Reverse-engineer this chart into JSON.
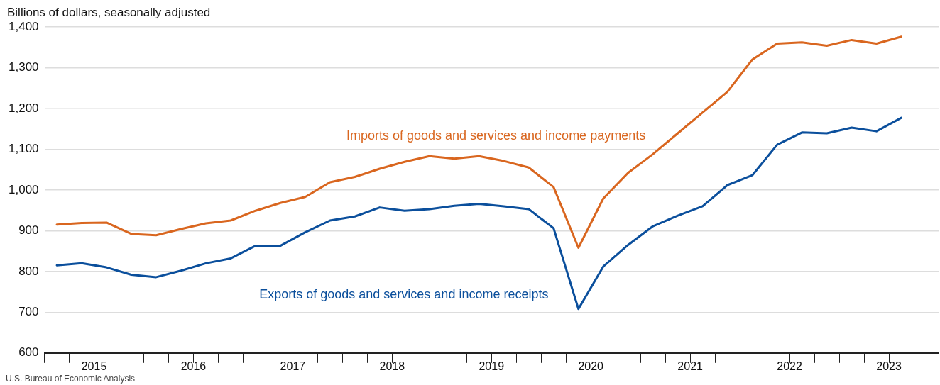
{
  "chart_data": {
    "type": "line",
    "ylabel": "Billions of dollars, seasonally adjusted",
    "annotations": [
      "U.S. Bureau of Economic Analysis"
    ],
    "x": [
      2015.125,
      2015.375,
      2015.625,
      2015.875,
      2016.125,
      2016.375,
      2016.625,
      2016.875,
      2017.125,
      2017.375,
      2017.625,
      2017.875,
      2018.125,
      2018.375,
      2018.625,
      2018.875,
      2019.125,
      2019.375,
      2019.625,
      2019.875,
      2020.125,
      2020.375,
      2020.625,
      2020.875,
      2021.125,
      2021.375,
      2021.625,
      2021.875,
      2022.125,
      2022.375,
      2022.625,
      2022.875,
      2023.125,
      2023.375,
      2023.625
    ],
    "series": [
      {
        "name": "Imports of goods and services and income payments",
        "color": "#d9661f",
        "values": [
          915,
          919,
          920,
          892,
          889,
          904,
          918,
          925,
          949,
          968,
          983,
          1019,
          1032,
          1052,
          1069,
          1083,
          1077,
          1083,
          1071,
          1055,
          1007,
          858,
          979,
          1042,
          1088,
          1139,
          1190,
          1241,
          1320,
          1359,
          1362,
          1354,
          1368,
          1359,
          1376
        ]
      },
      {
        "name": "Exports of goods and services and income receipts",
        "color": "#0b4f9c",
        "values": [
          815,
          820,
          810,
          792,
          786,
          802,
          820,
          832,
          863,
          863,
          896,
          925,
          935,
          957,
          949,
          953,
          961,
          966,
          960,
          953,
          906,
          708,
          812,
          865,
          911,
          937,
          960,
          1012,
          1036,
          1111,
          1141,
          1139,
          1153,
          1144,
          1177
        ]
      }
    ],
    "xlim": [
      2015,
      2024
    ],
    "xticks": [
      {
        "value": 2015,
        "label": null
      },
      {
        "value": 2015.25,
        "label": null
      },
      {
        "value": 2015.5,
        "label": "2015"
      },
      {
        "value": 2015.75,
        "label": null
      },
      {
        "value": 2016,
        "label": null
      },
      {
        "value": 2016.25,
        "label": null
      },
      {
        "value": 2016.5,
        "label": "2016"
      },
      {
        "value": 2016.75,
        "label": null
      },
      {
        "value": 2017,
        "label": null
      },
      {
        "value": 2017.25,
        "label": null
      },
      {
        "value": 2017.5,
        "label": "2017"
      },
      {
        "value": 2017.75,
        "label": null
      },
      {
        "value": 2018,
        "label": null
      },
      {
        "value": 2018.25,
        "label": null
      },
      {
        "value": 2018.5,
        "label": "2018"
      },
      {
        "value": 2018.75,
        "label": null
      },
      {
        "value": 2019,
        "label": null
      },
      {
        "value": 2019.25,
        "label": null
      },
      {
        "value": 2019.5,
        "label": "2019"
      },
      {
        "value": 2019.75,
        "label": null
      },
      {
        "value": 2020,
        "label": null
      },
      {
        "value": 2020.25,
        "label": null
      },
      {
        "value": 2020.5,
        "label": "2020"
      },
      {
        "value": 2020.75,
        "label": null
      },
      {
        "value": 2021,
        "label": null
      },
      {
        "value": 2021.25,
        "label": null
      },
      {
        "value": 2021.5,
        "label": "2021"
      },
      {
        "value": 2021.75,
        "label": null
      },
      {
        "value": 2022,
        "label": null
      },
      {
        "value": 2022.25,
        "label": null
      },
      {
        "value": 2022.5,
        "label": "2022"
      },
      {
        "value": 2022.75,
        "label": null
      },
      {
        "value": 2023,
        "label": null
      },
      {
        "value": 2023.25,
        "label": null
      },
      {
        "value": 2023.5,
        "label": "2023"
      },
      {
        "value": 2023.75,
        "label": null
      },
      {
        "value": 2024,
        "label": null
      }
    ],
    "ylim": [
      600,
      1400
    ],
    "yticks": [
      {
        "value": 600,
        "label": "600"
      },
      {
        "value": 700,
        "label": "700"
      },
      {
        "value": 800,
        "label": "800"
      },
      {
        "value": 900,
        "label": "900"
      },
      {
        "value": 1000,
        "label": "1,000"
      },
      {
        "value": 1100,
        "label": "1,100"
      },
      {
        "value": 1200,
        "label": "1,200"
      },
      {
        "value": 1300,
        "label": "1,300"
      },
      {
        "value": 1400,
        "label": "1,400"
      }
    ],
    "grid": "y",
    "legend": false,
    "marker": "none",
    "line_style": "solid"
  }
}
